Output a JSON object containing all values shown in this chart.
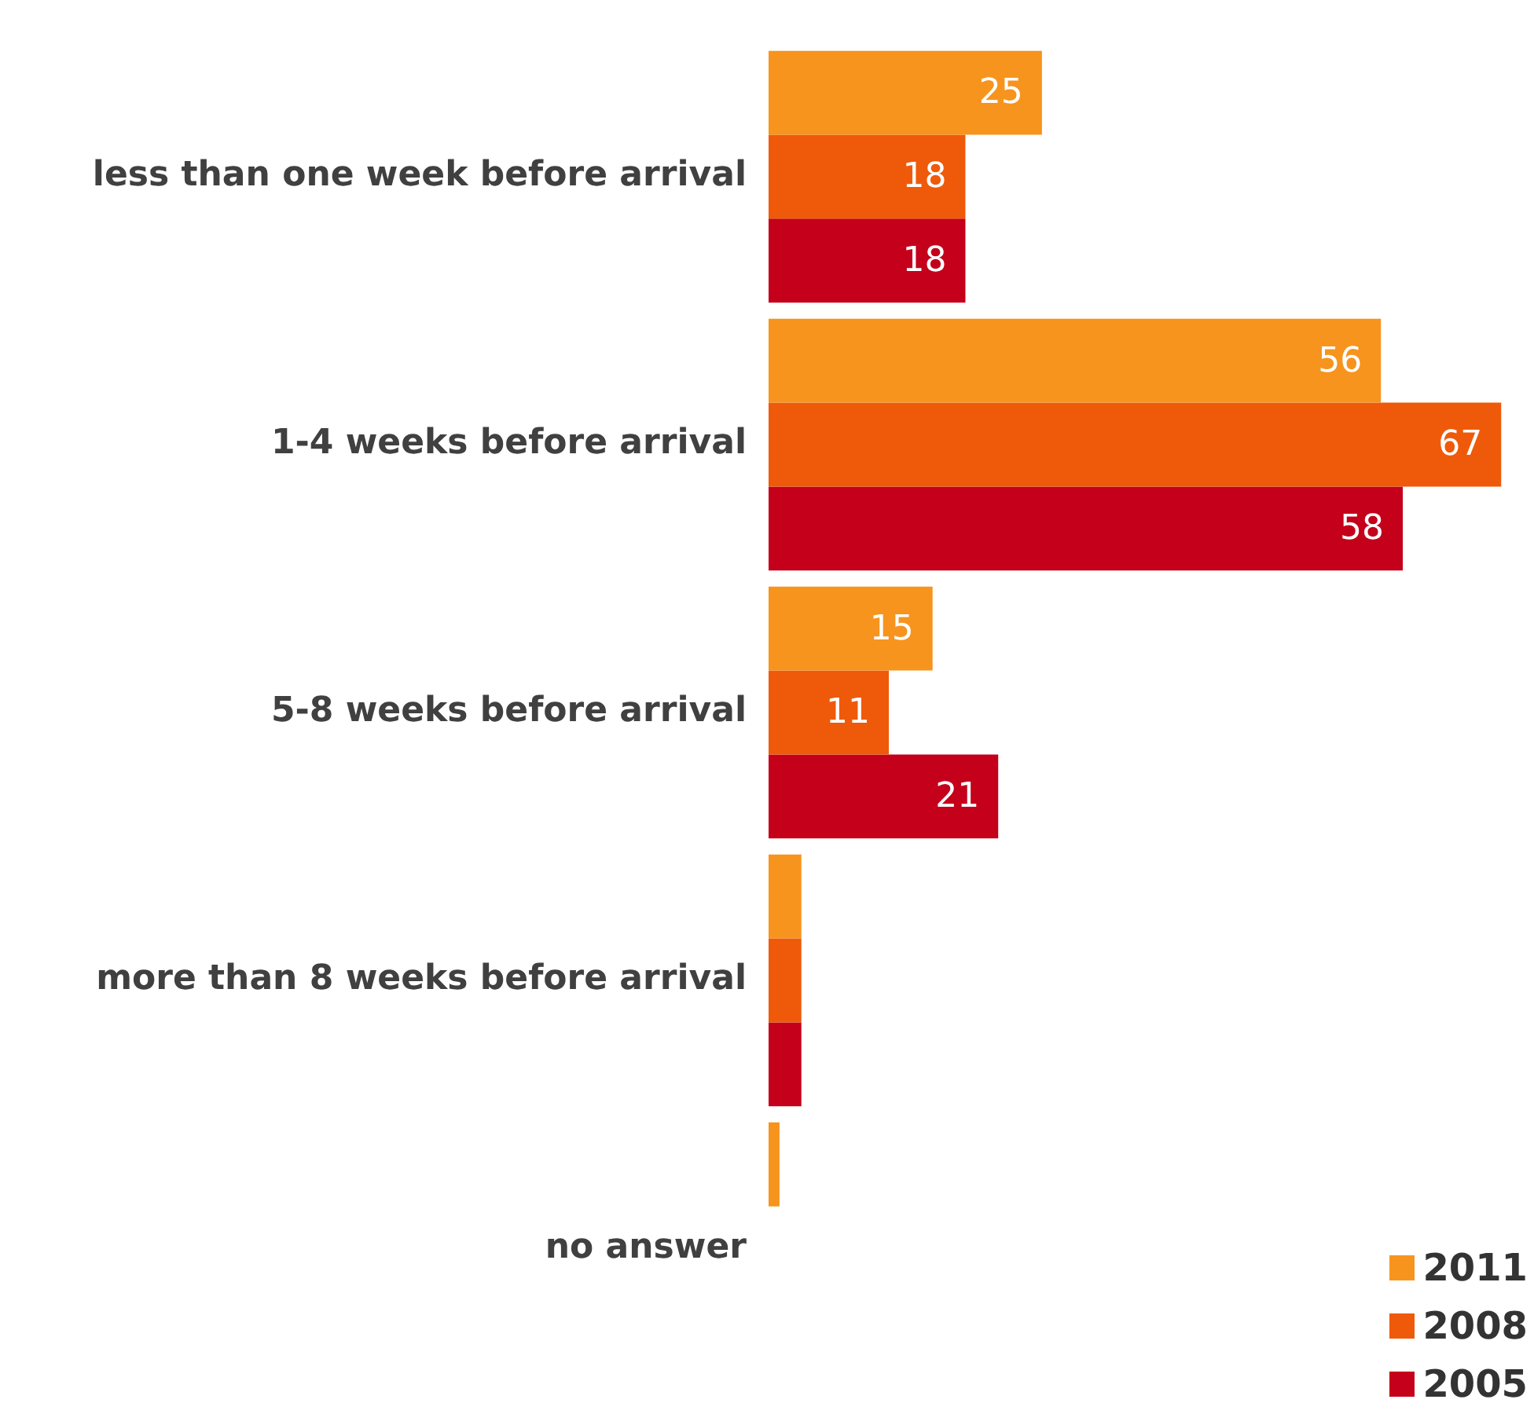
{
  "chart_data": {
    "type": "bar",
    "orientation": "horizontal",
    "categories": [
      "less than one week before arrival",
      "1-4 weeks before arrival",
      "5-8 weeks before arrival",
      "more than 8 weeks before arrival",
      "no answer"
    ],
    "series": [
      {
        "name": "2011",
        "color": "#f7941d",
        "values": [
          25,
          56,
          15,
          3,
          1
        ],
        "value_labels": [
          "25",
          "56",
          "15",
          null,
          null
        ]
      },
      {
        "name": "2008",
        "color": "#ef5a0a",
        "values": [
          18,
          67,
          11,
          3,
          null
        ],
        "value_labels": [
          "18",
          "67",
          "11",
          null,
          null
        ]
      },
      {
        "name": "2005",
        "color": "#c4001a",
        "values": [
          18,
          58,
          21,
          3,
          null
        ],
        "value_labels": [
          "18",
          "58",
          "21",
          null,
          null
        ]
      }
    ],
    "legend": "bottom right",
    "tick_labels": "y"
  }
}
